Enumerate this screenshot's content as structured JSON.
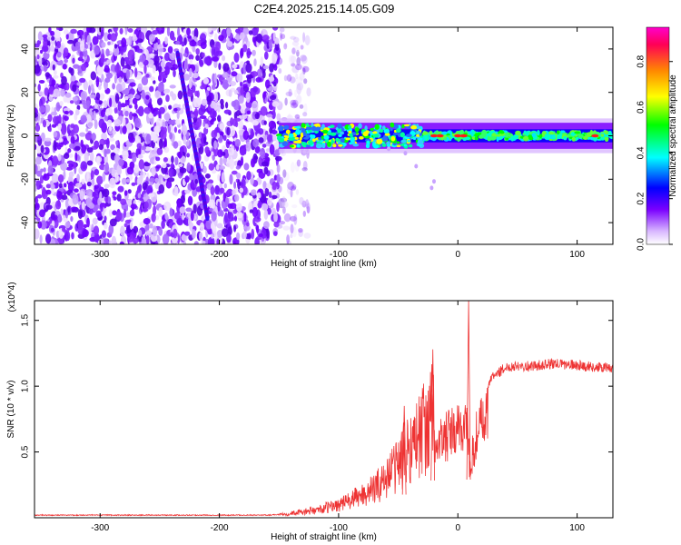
{
  "title": "C2E4.2025.215.14.05.G09",
  "charts": [
    {
      "type": "heatmap",
      "xlabel": "Height of straight line (km)",
      "ylabel": "Frequency (Hz)",
      "xlim": [
        -355,
        130
      ],
      "ylim": [
        -50,
        50
      ],
      "xticks": [
        -300,
        -200,
        -100,
        0,
        100
      ],
      "yticks": [
        40,
        20,
        0,
        -20,
        -40
      ],
      "colorbar": {
        "label": "Normalized spectral amplitude",
        "range": [
          0,
          0.95
        ],
        "ticks": [
          0.0,
          0.2,
          0.4,
          0.6,
          0.8
        ],
        "tick_labels": [
          "0.0",
          "0.2",
          "0.4",
          "0.6",
          "0.8"
        ],
        "colors": [
          "#ffffff",
          "#d9b8ff",
          "#7a00ff",
          "#0000ff",
          "#00ffff",
          "#00ff00",
          "#ffff00",
          "#ff8800",
          "#ff0055",
          "#ff00cc"
        ]
      },
      "features": {
        "noise_region_x": [
          -355,
          -150
        ],
        "stripe_from": [
          -235,
          38
        ],
        "stripe_to": [
          -210,
          -38
        ],
        "band_center_hz": 0,
        "band_halfwidth_hz": 6
      }
    },
    {
      "type": "line",
      "xlabel": "Height of straight line (km)",
      "ylabel": "SNR (10 * v/v)",
      "yscale_label": "(x10^4)",
      "xlim": [
        -355,
        130
      ],
      "ylim": [
        0,
        1.65
      ],
      "xticks": [
        -300,
        -200,
        -100,
        0,
        100
      ],
      "yticks": [
        0.5,
        1.0,
        1.5
      ],
      "ytick_labels": [
        "0.5",
        "1.0",
        "1.5"
      ],
      "color": "#ee3333",
      "series": [
        {
          "x": [
            -355,
            -300,
            -250,
            -200,
            -160,
            -140,
            -120,
            -100,
            -90,
            -80,
            -70,
            -60,
            -50,
            -40,
            -30,
            -20,
            -10,
            0,
            5,
            8,
            10,
            12,
            15,
            20,
            30,
            40,
            50,
            60,
            80,
            100,
            120,
            130
          ],
          "y": [
            0.02,
            0.02,
            0.02,
            0.02,
            0.02,
            0.03,
            0.05,
            0.09,
            0.12,
            0.16,
            0.2,
            0.28,
            0.38,
            0.5,
            0.6,
            0.72,
            0.82,
            0.88,
            0.95,
            1.0,
            0.45,
            0.62,
            0.82,
            0.95,
            1.08,
            1.14,
            1.16,
            1.15,
            1.17,
            1.16,
            1.14,
            1.14
          ]
        }
      ],
      "peaks": [
        {
          "x": 9,
          "y": 1.65
        },
        {
          "x": -21,
          "y": 1.28
        },
        {
          "x": -45,
          "y": 0.85
        }
      ]
    }
  ]
}
